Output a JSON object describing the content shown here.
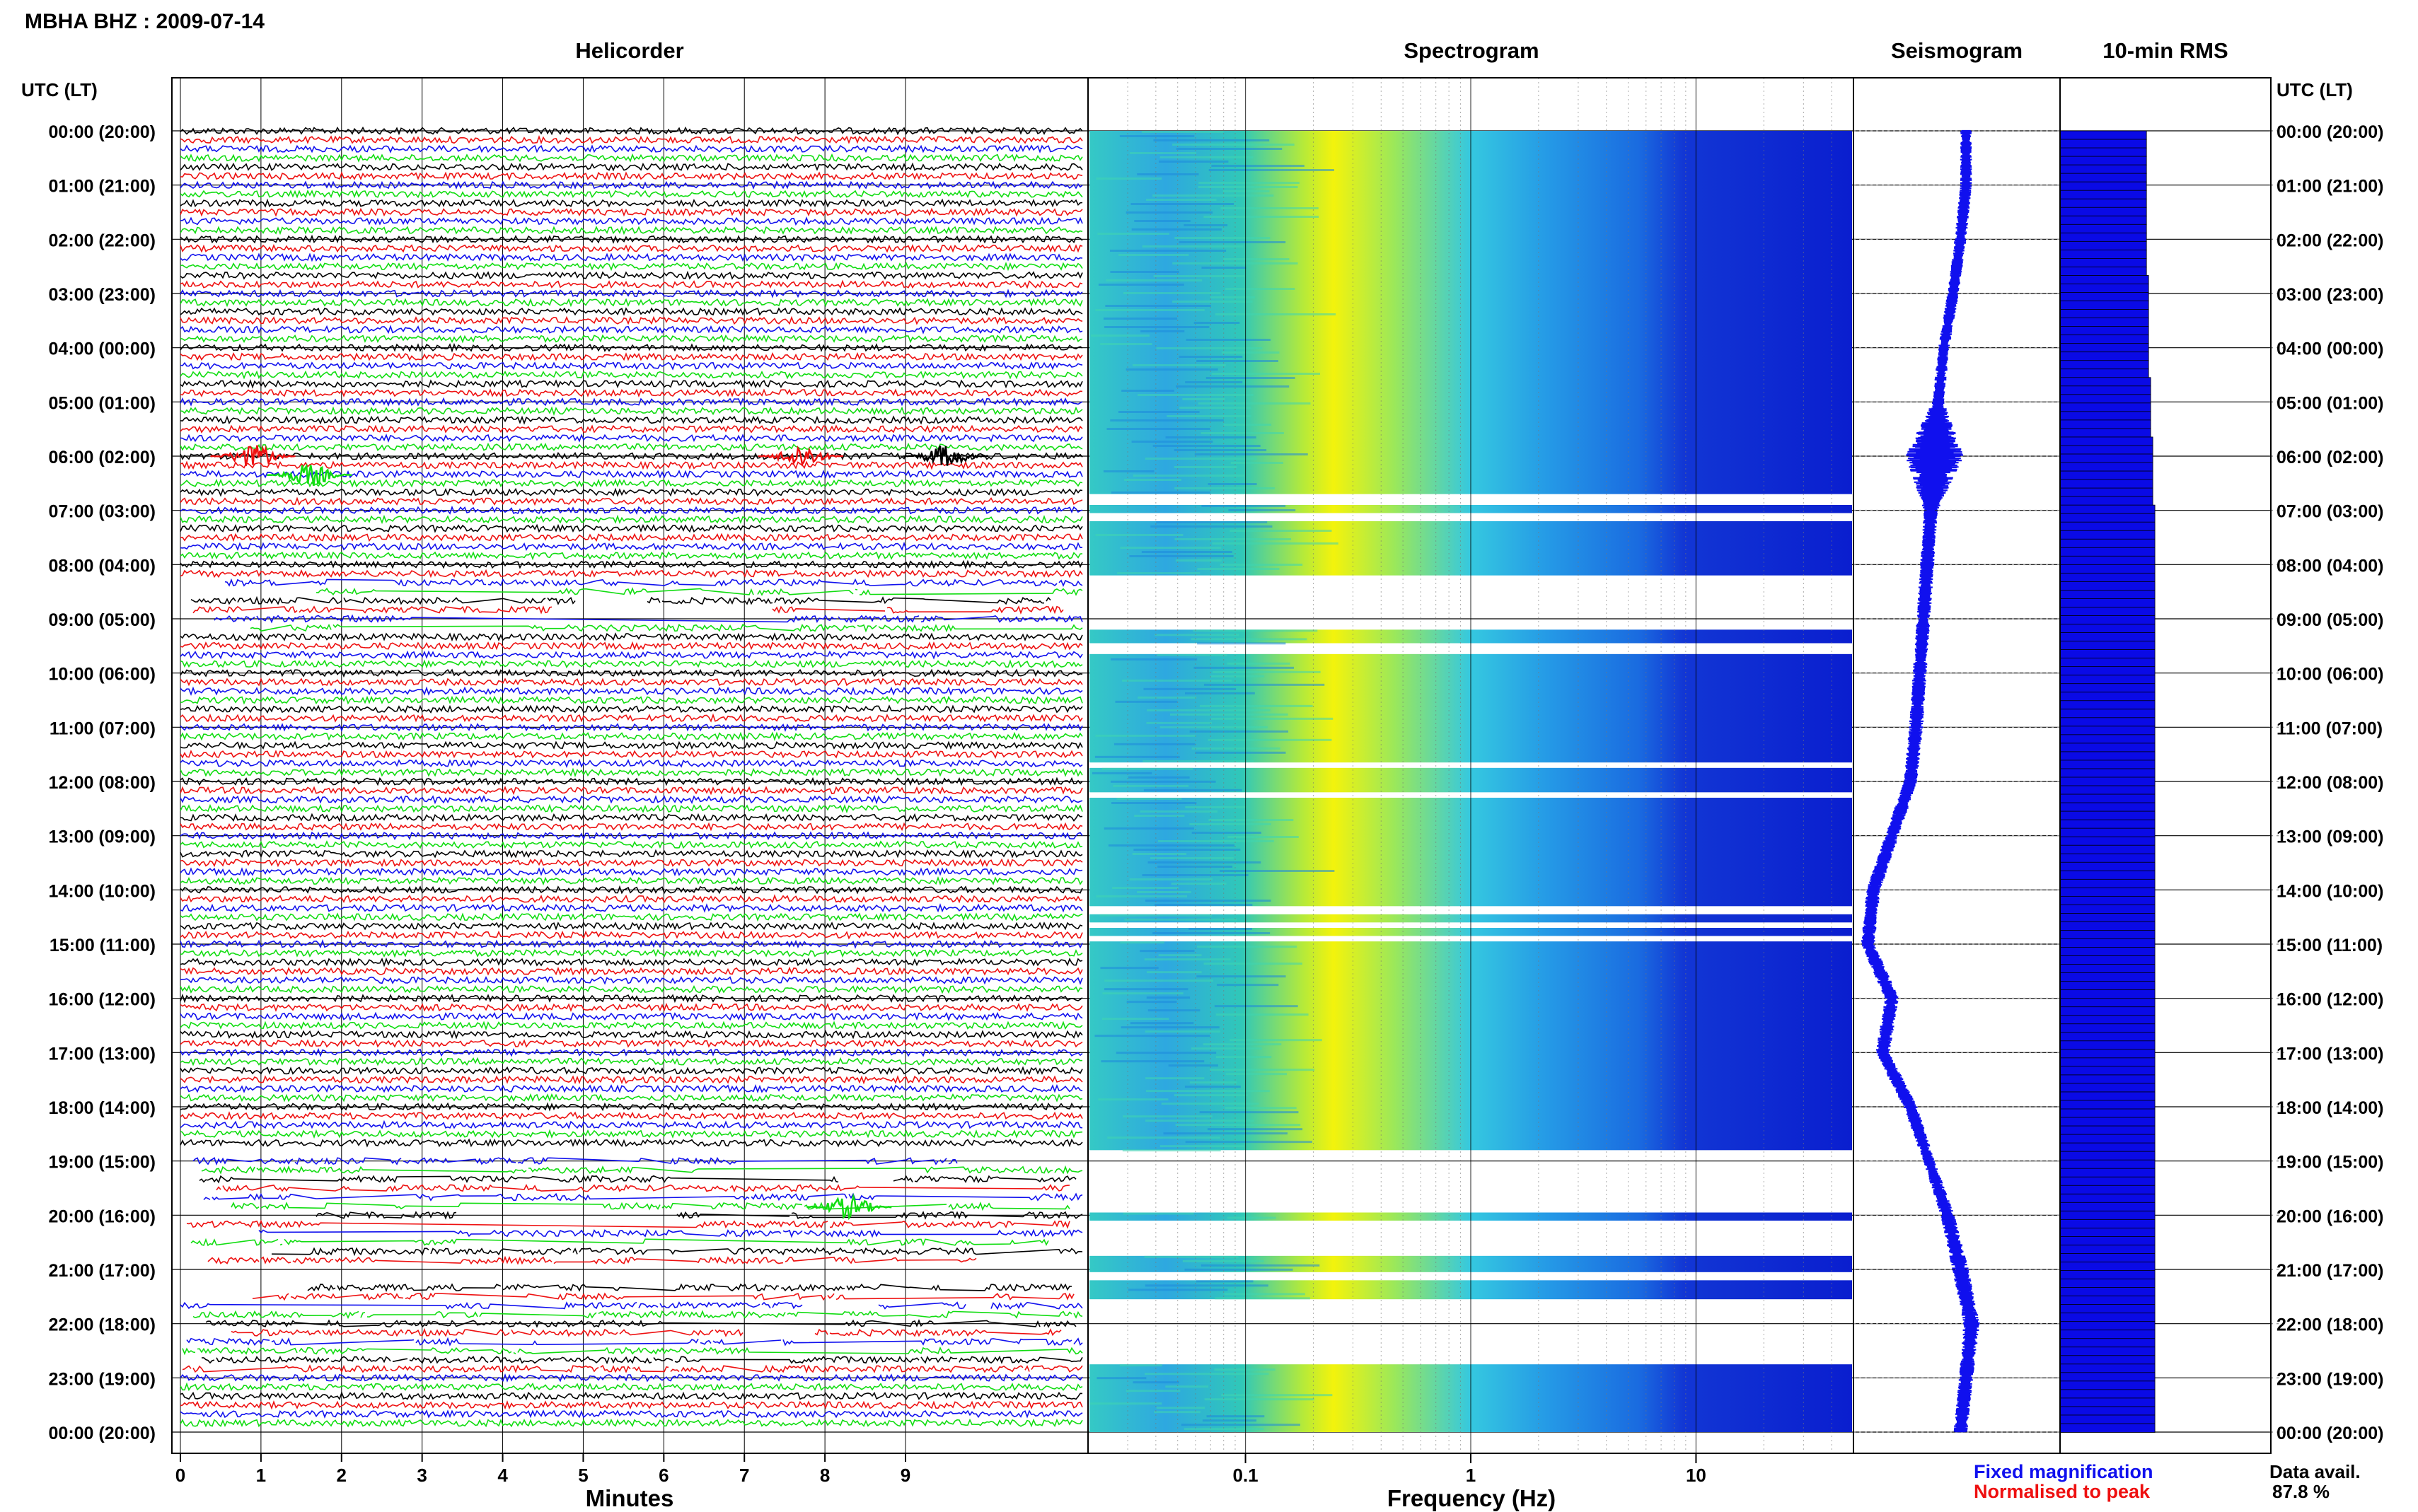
{
  "header": {
    "station_title": "MBHA BHZ : 2009-07-14",
    "time_axis_label_left": "UTC (LT)",
    "time_axis_label_right": "UTC (LT)"
  },
  "panels": {
    "helicorder_title": "Helicorder",
    "spectrogram_title": "Spectrogram",
    "seismogram_title": "Seismogram",
    "rms_title": "10-min RMS"
  },
  "legend": {
    "fixed_magnification": "Fixed magnification",
    "normalised_to_peak": "Normalised to peak",
    "fixed_color": "#1010ee",
    "normalised_color": "#ee1010"
  },
  "availability": {
    "label": "Data avail.",
    "value": "87.8 %"
  },
  "colors": {
    "trace_black": "#000000",
    "trace_red": "#ee1111",
    "trace_blue": "#1111ee",
    "trace_green": "#11dd11",
    "rms_fill": "#0a0ae6",
    "seismo": "#1010ee",
    "spec_low": "#0a1ecf",
    "spec_mid": "#29b8e8",
    "spec_high": "#f5f50a"
  },
  "chart_data": {
    "type": "heatmap",
    "time_ticks": [
      "00:00 (20:00)",
      "01:00 (21:00)",
      "02:00 (22:00)",
      "03:00 (23:00)",
      "04:00 (00:00)",
      "05:00 (01:00)",
      "06:00 (02:00)",
      "07:00 (03:00)",
      "08:00 (04:00)",
      "09:00 (05:00)",
      "10:00 (06:00)",
      "11:00 (07:00)",
      "12:00 (08:00)",
      "13:00 (09:00)",
      "14:00 (10:00)",
      "15:00 (11:00)",
      "16:00 (12:00)",
      "17:00 (13:00)",
      "18:00 (14:00)",
      "19:00 (15:00)",
      "20:00 (16:00)",
      "21:00 (17:00)",
      "22:00 (18:00)",
      "23:00 (19:00)",
      "00:00 (20:00)"
    ],
    "helicorder": {
      "xlabel": "Minutes",
      "x_ticks": [
        "0",
        "1",
        "2",
        "3",
        "4",
        "5",
        "6",
        "7",
        "8",
        "9"
      ],
      "xlim": [
        0,
        10
      ],
      "lines_per_hour": 6,
      "gap_hours": [
        [
          8.2,
          9.2
        ],
        [
          18.8,
          19.0
        ],
        [
          21.0,
          23.0
        ]
      ],
      "sparse_hours": [
        [
          8.2,
          9.2
        ],
        [
          19.0,
          21.0
        ],
        [
          21.2,
          22.9
        ]
      ],
      "events": [
        {
          "hour": 6.0,
          "minute": 0.9,
          "color": "red"
        },
        {
          "hour": 6.0,
          "minute": 7.7,
          "color": "red"
        },
        {
          "hour": 6.0,
          "minute": 9.5,
          "color": "black"
        },
        {
          "hour": 6.35,
          "minute": 1.6,
          "color": "green"
        },
        {
          "hour": 19.85,
          "minute": 8.3,
          "color": "green"
        }
      ]
    },
    "spectrogram": {
      "xlabel": "Frequency (Hz)",
      "x_ticks": [
        "0.1",
        "1",
        "10"
      ],
      "x_scale": "log",
      "xlim": [
        0.02,
        50
      ],
      "data_blocks_hours": [
        [
          0.0,
          6.7
        ],
        [
          6.9,
          7.05
        ],
        [
          7.2,
          8.2
        ],
        [
          9.2,
          9.45
        ],
        [
          9.65,
          11.65
        ],
        [
          11.75,
          12.2
        ],
        [
          12.3,
          14.3
        ],
        [
          14.45,
          14.6
        ],
        [
          14.7,
          14.85
        ],
        [
          14.95,
          18.8
        ],
        [
          19.95,
          20.1
        ],
        [
          20.75,
          21.05
        ],
        [
          21.2,
          21.55
        ],
        [
          22.75,
          24.0
        ]
      ],
      "peak_frequency_hz": 0.3
    },
    "seismogram": {
      "offsets": [
        0.55,
        0.55,
        0.52,
        0.48,
        0.43,
        0.4,
        0.38,
        0.36,
        0.34,
        0.32,
        0.3,
        0.28,
        0.25,
        0.15,
        0.05,
        0.02,
        0.15,
        0.1,
        0.25,
        0.35,
        0.45,
        0.52,
        0.58,
        0.55,
        0.52
      ],
      "amplitudes": [
        0.05,
        0.05,
        0.05,
        0.05,
        0.05,
        0.05,
        0.25,
        0.06,
        0.06,
        0.06,
        0.06,
        0.06,
        0.06,
        0.06,
        0.06,
        0.06,
        0.06,
        0.06,
        0.06,
        0.05,
        0.06,
        0.07,
        0.07,
        0.06,
        0.06
      ]
    },
    "rms": {
      "interval_minutes": 10,
      "xlim": [
        0,
        100
      ],
      "values": [
        41,
        41,
        41,
        41,
        41,
        41,
        41,
        41,
        41,
        41,
        41,
        41,
        41,
        41,
        41,
        41,
        41,
        42,
        42,
        42,
        42,
        42,
        42,
        42,
        42,
        42,
        42,
        42,
        42,
        43,
        43,
        43,
        43,
        43,
        43,
        43,
        44,
        44,
        44,
        44,
        44,
        44,
        44,
        44,
        45,
        45,
        45,
        45,
        45,
        45,
        45,
        45,
        45,
        45,
        45,
        45,
        45,
        45,
        45,
        45,
        45,
        45,
        45,
        45,
        45,
        45,
        45,
        45,
        45,
        45,
        45,
        45,
        45,
        45,
        45,
        45,
        45,
        45,
        45,
        45,
        45,
        45,
        45,
        45,
        45,
        45,
        45,
        45,
        45,
        45,
        45,
        45,
        45,
        45,
        45,
        45,
        45,
        45,
        45,
        45,
        45,
        45,
        45,
        45,
        45,
        45,
        45,
        45,
        45,
        45,
        45,
        45,
        45,
        45,
        45,
        45,
        45,
        45,
        45,
        45,
        45,
        45,
        45,
        45,
        45,
        45,
        45,
        45,
        45,
        45,
        45,
        45,
        45,
        45,
        45,
        45,
        45,
        45,
        45,
        45,
        45,
        45,
        45,
        45,
        45,
        45,
        45,
        45,
        45,
        45,
        45,
        45,
        45
      ]
    }
  }
}
